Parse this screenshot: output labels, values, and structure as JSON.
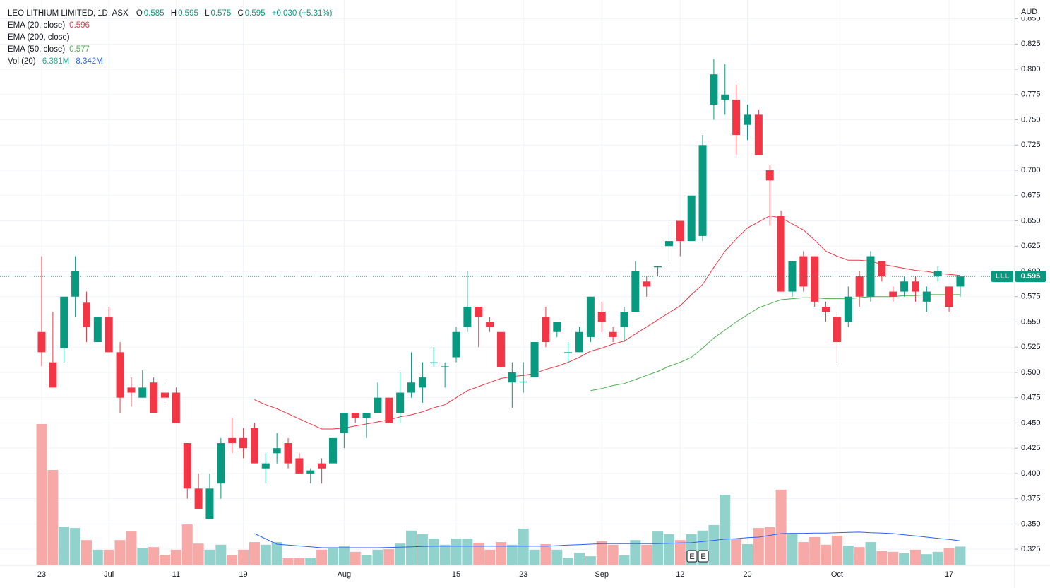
{
  "chart_data": {
    "type": "candlestick",
    "title": "LEO LITHIUM LIMITED, 1D, ASX",
    "change": "+0.030 (+5.31%)",
    "ohlc_labels": [
      "O",
      "H",
      "L",
      "C"
    ],
    "currency": "AUD",
    "symbol": "LLL",
    "up_color": "#089981",
    "down_color": "#f23645",
    "categories": [
      "23",
      null,
      null,
      null,
      null,
      null,
      "Jul",
      null,
      null,
      null,
      null,
      null,
      "11",
      null,
      null,
      null,
      null,
      null,
      "19",
      null,
      null,
      null,
      null,
      null,
      null,
      null,
      null,
      "Aug",
      null,
      null,
      null,
      null,
      null,
      null,
      null,
      null,
      null,
      "15",
      null,
      null,
      null,
      null,
      null,
      "23",
      null,
      null,
      null,
      null,
      null,
      null,
      "Sep",
      null,
      null,
      null,
      null,
      null,
      null,
      "12",
      null,
      null,
      null,
      null,
      null,
      "20",
      null,
      null,
      null,
      null,
      null,
      null,
      null,
      "Oct",
      null,
      null,
      null,
      null,
      null,
      null,
      null,
      null,
      null,
      "17",
      null
    ],
    "open": [
      0.54,
      0.51,
      0.524,
      0.575,
      0.569,
      0.53,
      0.555,
      0.52,
      0.485,
      0.475,
      0.49,
      0.48,
      0.48,
      0.43,
      0.385,
      0.355,
      0.39,
      0.435,
      0.435,
      0.445,
      0.405,
      0.42,
      0.43,
      0.415,
      0.4,
      0.41,
      0.41,
      0.44,
      0.46,
      0.455,
      0.46,
      0.475,
      0.46,
      0.48,
      0.485,
      0.509,
      0.505,
      0.515,
      0.545,
      0.565,
      0.55,
      0.54,
      0.49,
      0.49,
      0.495,
      0.555,
      0.54,
      0.519,
      0.52,
      0.535,
      0.56,
      0.54,
      0.545,
      0.56,
      0.59,
      0.604,
      0.625,
      0.65,
      0.63,
      0.635,
      0.765,
      0.77,
      0.77,
      0.745,
      0.755,
      0.7,
      0.655,
      0.58,
      0.615,
      0.615,
      0.565,
      0.555,
      0.55,
      0.595,
      0.575,
      0.61,
      0.58,
      0.58,
      0.59,
      0.57,
      0.595,
      0.585,
      0.585
    ],
    "high": [
      0.615,
      0.56,
      0.575,
      0.615,
      0.58,
      0.555,
      0.565,
      0.53,
      0.495,
      0.502,
      0.495,
      0.49,
      0.485,
      0.43,
      0.4,
      0.4,
      0.435,
      0.455,
      0.445,
      0.45,
      0.42,
      0.44,
      0.435,
      0.42,
      0.405,
      0.415,
      0.435,
      0.46,
      0.46,
      0.46,
      0.49,
      0.475,
      0.5,
      0.52,
      0.51,
      0.525,
      0.51,
      0.545,
      0.6,
      0.565,
      0.555,
      0.54,
      0.51,
      0.51,
      0.53,
      0.565,
      0.55,
      0.53,
      0.545,
      0.575,
      0.57,
      0.545,
      0.565,
      0.61,
      0.595,
      0.605,
      0.645,
      0.65,
      0.675,
      0.735,
      0.81,
      0.805,
      0.785,
      0.765,
      0.76,
      0.705,
      0.66,
      0.61,
      0.62,
      0.615,
      0.57,
      0.56,
      0.585,
      0.6,
      0.62,
      0.61,
      0.585,
      0.595,
      0.595,
      0.585,
      0.605,
      0.585,
      0.595
    ],
    "low": [
      0.506,
      0.485,
      0.51,
      0.555,
      0.53,
      0.53,
      0.52,
      0.46,
      0.466,
      0.475,
      0.46,
      0.47,
      0.45,
      0.375,
      0.365,
      0.355,
      0.375,
      0.42,
      0.415,
      0.41,
      0.39,
      0.41,
      0.405,
      0.4,
      0.39,
      0.39,
      0.41,
      0.425,
      0.45,
      0.435,
      0.46,
      0.45,
      0.45,
      0.475,
      0.47,
      0.505,
      0.485,
      0.51,
      0.54,
      0.525,
      0.54,
      0.5,
      0.465,
      0.48,
      0.495,
      0.525,
      0.535,
      0.51,
      0.52,
      0.53,
      0.54,
      0.53,
      0.53,
      0.56,
      0.575,
      0.595,
      0.61,
      0.615,
      0.63,
      0.63,
      0.75,
      0.755,
      0.715,
      0.73,
      0.715,
      0.645,
      0.58,
      0.575,
      0.58,
      0.565,
      0.55,
      0.51,
      0.545,
      0.565,
      0.57,
      0.59,
      0.57,
      0.575,
      0.57,
      0.56,
      0.59,
      0.56,
      0.575
    ],
    "close": [
      0.52,
      0.485,
      0.575,
      0.6,
      0.545,
      0.555,
      0.52,
      0.475,
      0.48,
      0.485,
      0.46,
      0.475,
      0.45,
      0.385,
      0.365,
      0.385,
      0.43,
      0.43,
      0.425,
      0.41,
      0.41,
      0.425,
      0.41,
      0.4,
      0.403,
      0.405,
      0.435,
      0.46,
      0.455,
      0.46,
      0.475,
      0.45,
      0.48,
      0.49,
      0.495,
      0.51,
      0.506,
      0.54,
      0.565,
      0.555,
      0.545,
      0.505,
      0.5,
      0.491,
      0.53,
      0.53,
      0.55,
      0.52,
      0.54,
      0.575,
      0.55,
      0.535,
      0.56,
      0.6,
      0.585,
      0.605,
      0.63,
      0.63,
      0.675,
      0.725,
      0.795,
      0.775,
      0.735,
      0.755,
      0.715,
      0.69,
      0.58,
      0.61,
      0.585,
      0.57,
      0.56,
      0.53,
      0.575,
      0.575,
      0.615,
      0.595,
      0.575,
      0.59,
      0.58,
      0.58,
      0.6,
      0.565,
      0.595
    ],
    "series": [
      {
        "name": "EMA (20, close)",
        "color": "#f23645",
        "values": [
          null,
          null,
          null,
          null,
          null,
          null,
          null,
          null,
          null,
          null,
          null,
          null,
          null,
          null,
          null,
          null,
          null,
          null,
          null,
          0.473,
          0.468,
          0.464,
          0.459,
          0.454,
          0.449,
          0.444,
          0.444,
          0.445,
          0.447,
          0.449,
          0.451,
          0.453,
          0.456,
          0.458,
          0.461,
          0.465,
          0.468,
          0.475,
          0.482,
          0.486,
          0.49,
          0.494,
          0.496,
          0.497,
          0.499,
          0.503,
          0.506,
          0.51,
          0.515,
          0.521,
          0.524,
          0.528,
          0.531,
          0.538,
          0.545,
          0.552,
          0.559,
          0.566,
          0.577,
          0.587,
          0.604,
          0.62,
          0.632,
          0.643,
          0.649,
          0.655,
          0.653,
          0.647,
          0.641,
          0.631,
          0.62,
          0.615,
          0.611,
          0.611,
          0.61,
          0.607,
          0.605,
          0.603,
          0.601,
          0.6,
          0.598,
          0.597,
          0.596
        ]
      },
      {
        "name": "EMA (200, close)",
        "color": "#2962ff",
        "values": [
          null,
          null,
          null,
          null,
          null,
          null,
          null,
          null,
          null,
          null,
          null,
          null,
          null,
          null,
          null,
          null,
          null,
          null,
          null,
          null,
          null,
          null,
          null,
          null,
          null,
          null,
          null,
          null,
          null,
          null,
          null,
          null,
          null,
          null,
          null,
          null,
          null,
          null,
          null,
          null,
          null,
          null,
          null,
          null,
          null,
          null,
          null,
          null,
          null,
          null,
          null,
          null,
          null,
          null,
          null,
          null,
          null,
          null,
          null,
          null,
          null,
          null,
          null,
          null,
          null,
          null,
          null,
          null,
          null,
          null,
          null,
          null,
          null,
          null,
          null,
          null,
          null,
          null,
          null,
          null,
          null,
          null,
          null
        ]
      },
      {
        "name": "EMA (50, close)",
        "color": "#4caf50",
        "values": [
          null,
          null,
          null,
          null,
          null,
          null,
          null,
          null,
          null,
          null,
          null,
          null,
          null,
          null,
          null,
          null,
          null,
          null,
          null,
          null,
          null,
          null,
          null,
          null,
          null,
          null,
          null,
          null,
          null,
          null,
          null,
          null,
          null,
          null,
          null,
          null,
          null,
          null,
          null,
          null,
          null,
          null,
          null,
          null,
          null,
          null,
          null,
          null,
          null,
          0.482,
          0.484,
          0.487,
          0.489,
          0.493,
          0.497,
          0.501,
          0.506,
          0.51,
          0.515,
          0.524,
          0.534,
          0.542,
          0.55,
          0.557,
          0.564,
          0.568,
          0.572,
          0.573,
          0.574,
          0.574,
          0.573,
          0.573,
          0.573,
          0.574,
          0.575,
          0.575,
          0.575,
          0.576,
          0.576,
          0.577,
          0.577,
          0.577,
          0.577
        ]
      }
    ],
    "volume": {
      "name": "Vol (20)",
      "value_label": "6.381M",
      "ma_label": "8.342M",
      "up_color": "#92d2cc",
      "down_color": "#f7a9a7",
      "ma_color": "#2962ff",
      "values": [
        48.0,
        32.4,
        13.2,
        12.7,
        8.6,
        5.3,
        5.3,
        8.6,
        11.5,
        6.0,
        6.2,
        3.6,
        5.3,
        13.9,
        7.4,
        5.3,
        7.0,
        3.6,
        5.3,
        7.9,
        7.0,
        7.9,
        2.4,
        2.4,
        2.4,
        5.3,
        6.0,
        6.5,
        4.6,
        3.6,
        5.3,
        5.5,
        7.4,
        11.8,
        10.6,
        9.1,
        7.0,
        9.1,
        9.1,
        7.7,
        5.3,
        7.9,
        7.0,
        12.5,
        5.3,
        7.2,
        5.3,
        2.6,
        4.3,
        3.1,
        8.2,
        7.0,
        3.4,
        8.6,
        7.0,
        11.5,
        10.6,
        8.6,
        10.6,
        11.8,
        13.7,
        24.0,
        8.9,
        7.2,
        12.7,
        13.0,
        25.7,
        10.6,
        7.9,
        9.6,
        7.0,
        10.1,
        6.7,
        6.2,
        7.9,
        4.8,
        4.6,
        4.1,
        5.3,
        3.8,
        4.6,
        5.8,
        6.381
      ],
      "ma_values": [
        null,
        null,
        null,
        null,
        null,
        null,
        null,
        null,
        null,
        null,
        null,
        null,
        null,
        null,
        null,
        null,
        null,
        null,
        null,
        10.8,
        9.0,
        7.2,
        6.9,
        6.6,
        6.3,
        6.0,
        6.0,
        6.0,
        6.0,
        6.0,
        6.0,
        6.1,
        6.2,
        6.3,
        6.4,
        6.5,
        6.5,
        6.5,
        6.5,
        6.5,
        6.5,
        6.5,
        6.5,
        6.5,
        6.5,
        6.5,
        6.7,
        6.9,
        7.0,
        7.2,
        7.4,
        7.4,
        7.4,
        7.4,
        7.4,
        7.4,
        7.5,
        7.6,
        7.7,
        8.1,
        8.5,
        8.9,
        9.1,
        9.4,
        9.6,
        10.2,
        10.8,
        10.9,
        10.9,
        11.0,
        11.0,
        11.1,
        11.2,
        11.3,
        11.1,
        11.0,
        10.8,
        10.4,
        10.0,
        9.6,
        9.2,
        8.8,
        8.342
      ]
    },
    "events": [
      "E",
      "E"
    ],
    "ylim": [
      0.309,
      0.863
    ],
    "yticks": [
      0.325,
      {
        "value": 0.35,
        "label": "0.350"
      },
      0.375,
      {
        "value": 0.4,
        "label": "0.400"
      },
      0.425,
      {
        "value": 0.45,
        "label": "0.450"
      },
      0.475,
      {
        "value": 0.5,
        "label": "0.500"
      },
      0.525,
      {
        "value": 0.55,
        "label": "0.550"
      },
      0.575,
      {
        "value": 0.6,
        "label": "0.600"
      },
      0.625,
      {
        "value": 0.65,
        "label": "0.650"
      },
      0.675,
      {
        "value": 0.7,
        "label": "0.700"
      },
      0.725,
      {
        "value": 0.75,
        "label": "0.750"
      },
      0.775,
      {
        "value": 0.8,
        "label": "0.800"
      },
      0.825,
      {
        "value": 0.85,
        "label": "0.850"
      }
    ],
    "grid": true
  }
}
